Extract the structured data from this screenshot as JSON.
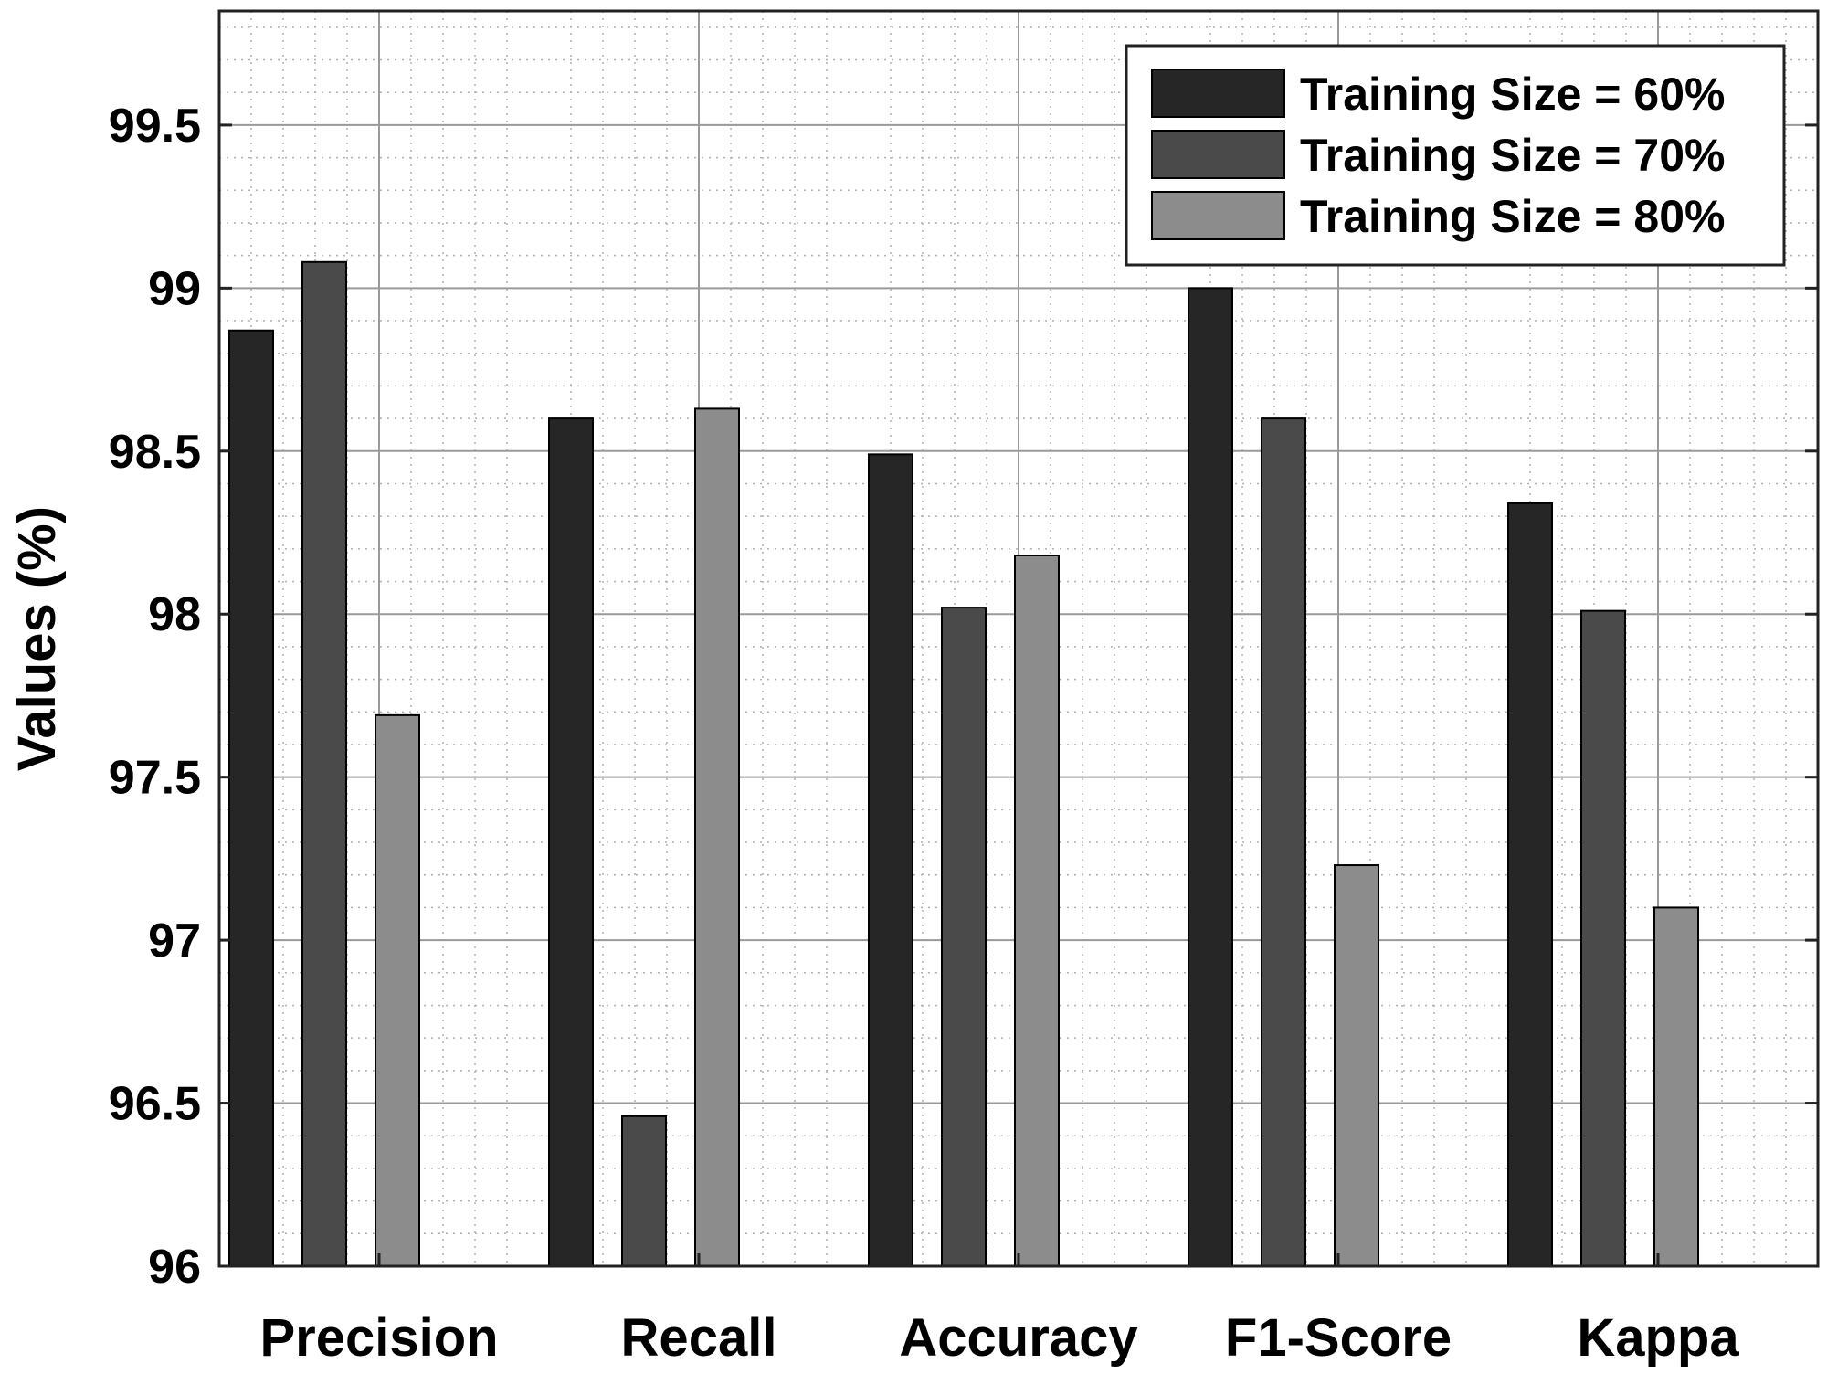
{
  "chart_data": {
    "type": "bar",
    "title": "",
    "xlabel": "",
    "ylabel": "Values (%)",
    "categories": [
      "Precision",
      "Recall",
      "Accuracy",
      "F1-Score",
      "Kappa"
    ],
    "series": [
      {
        "name": "Training Size = 60%",
        "color": "#262626",
        "values": [
          98.87,
          98.6,
          98.49,
          99.0,
          98.34
        ]
      },
      {
        "name": "Training Size = 70%",
        "color": "#4a4a4a",
        "values": [
          99.08,
          96.46,
          98.02,
          98.6,
          98.01
        ]
      },
      {
        "name": "Training Size = 80%",
        "color": "#8c8c8c",
        "values": [
          97.69,
          98.63,
          98.18,
          97.23,
          97.1
        ]
      }
    ],
    "ylim": [
      96,
      99.85
    ],
    "yticks": [
      96,
      96.5,
      97,
      97.5,
      98,
      98.5,
      99,
      99.5
    ],
    "ytick_labels": [
      "96",
      "96.5",
      "97",
      "97.5",
      "98",
      "98.5",
      "99",
      "99.5"
    ],
    "grid": true,
    "minor_grid": true,
    "legend_position": "top-right"
  }
}
